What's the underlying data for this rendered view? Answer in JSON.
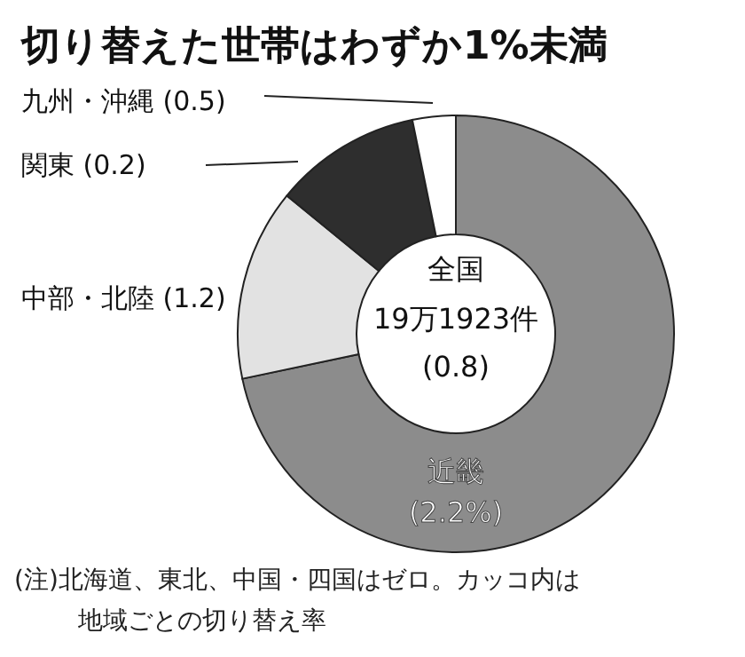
{
  "chart_data": {
    "type": "donut",
    "title": "切り替えた世帯はわずか1%未満",
    "categories": [
      "近畿",
      "中部・北陸",
      "関東",
      "九州・沖縄"
    ],
    "values": [
      71.7,
      14.2,
      10.9,
      3.2
    ],
    "colors": [
      "#8c8c8c",
      "#e2e2e2",
      "#2e2e2e",
      "#ffffff"
    ],
    "annotations": [
      {
        "text": "(2.2%)",
        "x": "近畿"
      },
      {
        "text": "(1.2)",
        "x": "中部・北陸"
      },
      {
        "text": "(0.2)",
        "x": "関東"
      },
      {
        "text": "(0.5)",
        "x": "九州・沖縄"
      },
      "全国",
      "19万1923件",
      "(0.8)",
      "(注)北海道、東北、中国・四国はゼロ。カッコ内は地域ごとの切り替え率"
    ]
  }
}
